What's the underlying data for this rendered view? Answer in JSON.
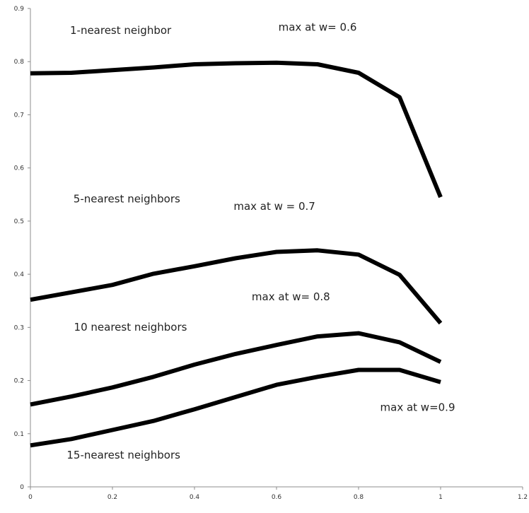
{
  "chart_data": {
    "type": "line",
    "title": "",
    "xlabel": "",
    "ylabel": "",
    "xlim": [
      0,
      1.2
    ],
    "ylim": [
      0,
      0.9
    ],
    "x_ticks": [
      0,
      0.2,
      0.4,
      0.6,
      0.8,
      1,
      1.2
    ],
    "y_ticks": [
      0,
      0.1,
      0.2,
      0.3,
      0.4,
      0.5,
      0.6,
      0.7,
      0.8,
      0.9
    ],
    "grid": false,
    "legend": "none",
    "line_color": "#000000",
    "x": [
      0,
      0.1,
      0.2,
      0.3,
      0.4,
      0.5,
      0.6,
      0.7,
      0.8,
      0.9,
      1.0
    ],
    "series": [
      {
        "values": [
          0.778,
          0.779,
          0.784,
          0.789,
          0.795,
          0.797,
          0.798,
          0.795,
          0.779,
          0.733,
          0.545
        ]
      },
      {
        "values": [
          0.352,
          0.366,
          0.38,
          0.401,
          0.415,
          0.43,
          0.442,
          0.445,
          0.437,
          0.399,
          0.308
        ]
      },
      {
        "values": [
          0.155,
          0.17,
          0.187,
          0.207,
          0.23,
          0.25,
          0.267,
          0.283,
          0.289,
          0.272,
          0.235
        ]
      },
      {
        "values": [
          0.078,
          0.09,
          0.107,
          0.124,
          0.146,
          0.169,
          0.192,
          0.207,
          0.22,
          0.22,
          0.197
        ]
      }
    ],
    "annotations": [
      {
        "text": "1-nearest neighbor",
        "x": 0.22,
        "y": 0.852
      },
      {
        "text": "max at w= 0.6",
        "x": 0.7,
        "y": 0.858
      },
      {
        "text": "5-nearest neighbors",
        "x": 0.235,
        "y": 0.535
      },
      {
        "text": "max at  w = 0.7",
        "x": 0.595,
        "y": 0.521
      },
      {
        "text": "max at w= 0.8",
        "x": 0.635,
        "y": 0.351
      },
      {
        "text": "10 nearest neighbors",
        "x": 0.244,
        "y": 0.294
      },
      {
        "text": "max at w=0.9",
        "x": 0.944,
        "y": 0.143
      },
      {
        "text": "15-nearest neighbors",
        "x": 0.227,
        "y": 0.053
      }
    ]
  }
}
